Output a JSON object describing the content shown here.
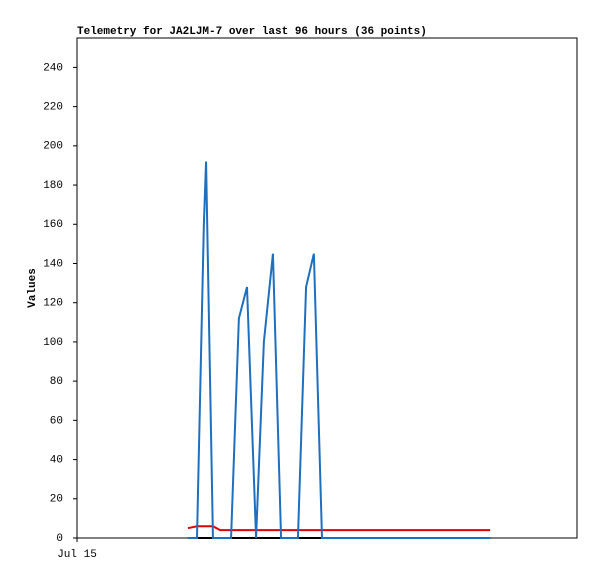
{
  "chart_data": {
    "type": "line",
    "title": "Telemetry for JA2LJM-7 over last 96 hours (36 points)",
    "y_label": "Values",
    "x": [
      35.5,
      38.4,
      40.6,
      41.3,
      43.5,
      45.8,
      49.3,
      51.8,
      54.4,
      57.3,
      59.8,
      62.7,
      65.3,
      70.7,
      73.3,
      75.8,
      78.4,
      81,
      84,
      87,
      90,
      93,
      96,
      99,
      102,
      105,
      108,
      111,
      114,
      117,
      120,
      123,
      126,
      129,
      131,
      132.2
    ],
    "xlim": [
      0,
      160
    ],
    "xticks": [
      {
        "value": 0,
        "label": "Jul 15"
      }
    ],
    "ylim": [
      0,
      255
    ],
    "yticks": [
      0,
      20,
      40,
      60,
      80,
      100,
      120,
      140,
      160,
      180,
      200,
      220,
      240
    ],
    "series": [
      {
        "color": "#000000",
        "values": [
          0,
          0,
          0,
          0,
          0,
          0,
          0,
          0,
          0,
          0,
          0,
          0,
          0,
          0,
          0,
          0,
          0,
          0,
          0,
          0,
          0,
          0,
          0,
          0,
          0,
          0,
          0,
          0,
          0,
          0,
          0,
          0,
          0,
          0,
          0,
          0
        ]
      },
      {
        "color": "#e00000",
        "values": [
          5,
          6,
          6,
          6,
          6,
          4,
          4,
          4,
          4,
          4,
          4,
          4,
          4,
          4,
          4,
          4,
          4,
          4,
          4,
          4,
          4,
          4,
          4,
          4,
          4,
          4,
          4,
          4,
          4,
          4,
          4,
          4,
          4,
          4,
          4,
          4
        ]
      },
      {
        "color": "#1f6fbf",
        "values": [
          0,
          0,
          160,
          192,
          0,
          0,
          0,
          112,
          128,
          0,
          100,
          145,
          0,
          0,
          128,
          145,
          0,
          0,
          0,
          0,
          0,
          0,
          0,
          0,
          0,
          0,
          0,
          0,
          0,
          0,
          0,
          0,
          0,
          0,
          0,
          0
        ]
      }
    ]
  }
}
